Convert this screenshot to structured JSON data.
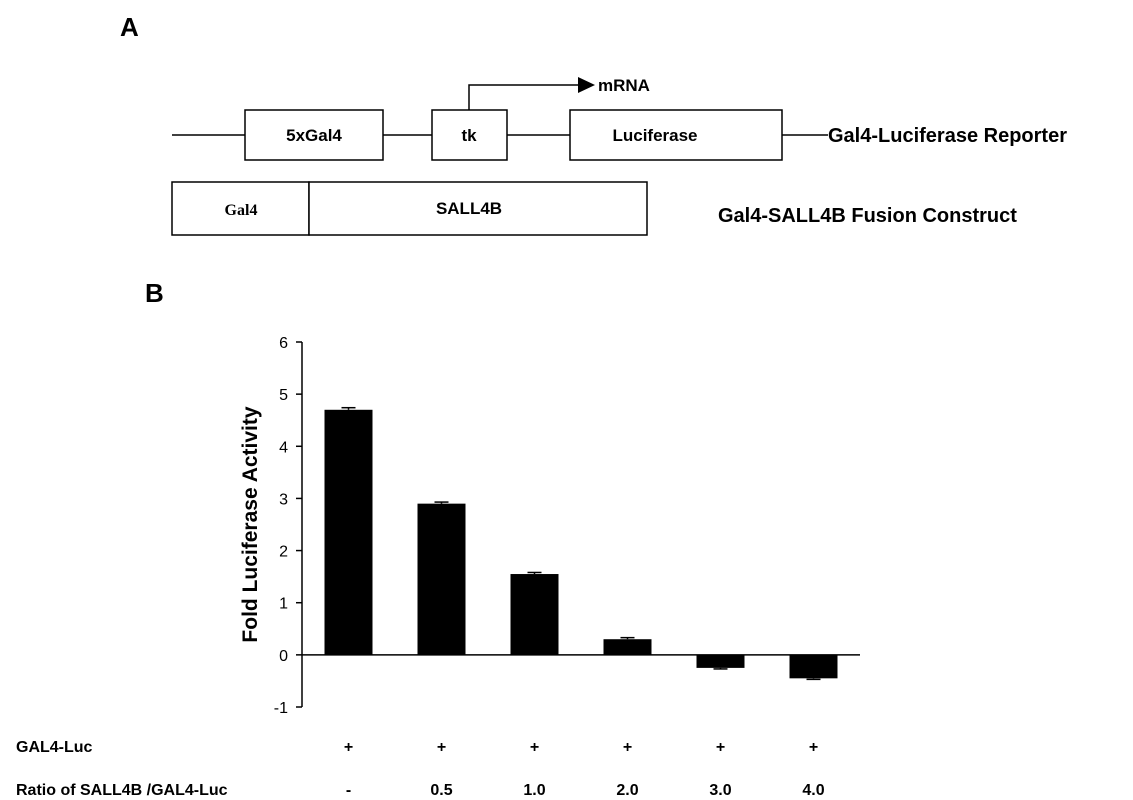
{
  "panels": {
    "a_label": "A",
    "b_label": "B"
  },
  "diagram": {
    "mrna_label": "mRNA",
    "reporter": {
      "elements": [
        "5xGal4",
        "tk",
        "Luciferase"
      ],
      "name": "Gal4-Luciferase Reporter"
    },
    "fusion": {
      "elements": [
        "Gal4",
        "SALL4B"
      ],
      "name": "Gal4-SALL4B Fusion Construct"
    }
  },
  "chart_data": {
    "type": "bar",
    "title": "",
    "xlabel": "",
    "ylabel": "Fold Luciferase Activity",
    "ylim": [
      -1,
      6
    ],
    "yticks": [
      "6",
      "5",
      "4",
      "3",
      "2",
      "1",
      "0",
      "-1"
    ],
    "bar_color": "#000000",
    "series": [
      {
        "values": [
          4.7,
          2.9,
          1.55,
          0.3,
          -0.25,
          -0.45
        ]
      }
    ],
    "error_bars": [
      0.04,
      0.03,
      0.03,
      0.03,
      0.02,
      0.02
    ],
    "rows": [
      {
        "label": "GAL4-Luc",
        "values": [
          "+",
          "+",
          "+",
          "+",
          "+",
          "+"
        ]
      },
      {
        "label": "Ratio of SALL4B /GAL4-Luc",
        "values": [
          "-",
          "0.5",
          "1.0",
          "2.0",
          "3.0",
          "4.0"
        ]
      }
    ]
  }
}
